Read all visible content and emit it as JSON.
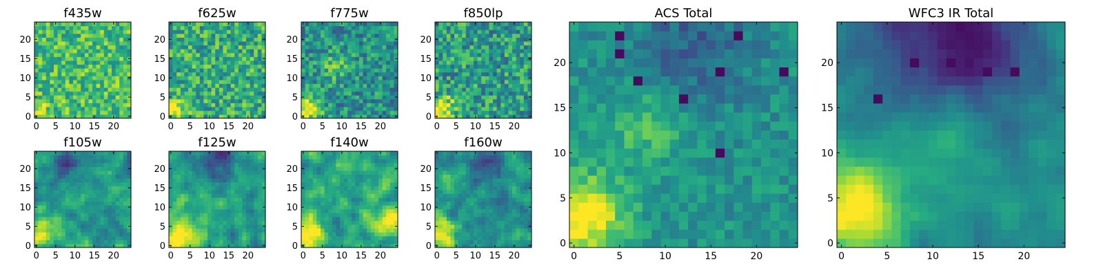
{
  "figure": {
    "background": "#ffffff"
  },
  "colormap": {
    "name": "viridis",
    "stops": [
      "#440154",
      "#472c7a",
      "#3b518b",
      "#2c718e",
      "#21908d",
      "#27ad81",
      "#5cc863",
      "#aadc32",
      "#fde725"
    ]
  },
  "chart_data": [
    {
      "type": "heatmap",
      "title": "f435w",
      "grid": [
        25,
        25
      ],
      "xlim": [
        0,
        25
      ],
      "ylim": [
        0,
        25
      ],
      "xticks": [
        0,
        5,
        10,
        15,
        20
      ],
      "yticks": [
        0,
        5,
        10,
        15,
        20
      ],
      "value_range": [
        0,
        1
      ],
      "style": "noisy",
      "mean": 0.7,
      "noise": 0.22,
      "seed": 11,
      "features": [
        {
          "x": 1,
          "y": 2,
          "amp": 0.2,
          "r": 1.5
        }
      ]
    },
    {
      "type": "heatmap",
      "title": "f625w",
      "grid": [
        25,
        25
      ],
      "xlim": [
        0,
        25
      ],
      "ylim": [
        0,
        25
      ],
      "xticks": [
        0,
        5,
        10,
        15,
        20
      ],
      "yticks": [
        0,
        5,
        10,
        15,
        20
      ],
      "value_range": [
        0,
        1
      ],
      "style": "noisy",
      "mean": 0.62,
      "noise": 0.24,
      "seed": 23,
      "features": [
        {
          "x": 1,
          "y": 2,
          "amp": 0.45,
          "r": 2
        }
      ]
    },
    {
      "type": "heatmap",
      "title": "f775w",
      "grid": [
        25,
        25
      ],
      "xlim": [
        0,
        25
      ],
      "ylim": [
        0,
        25
      ],
      "xticks": [
        0,
        5,
        10,
        15,
        20
      ],
      "yticks": [
        0,
        5,
        10,
        15,
        20
      ],
      "value_range": [
        0,
        1
      ],
      "style": "noisy",
      "mean": 0.5,
      "noise": 0.22,
      "seed": 37,
      "features": [
        {
          "x": 1,
          "y": 2,
          "amp": 0.55,
          "r": 2.5
        },
        {
          "x": 8,
          "y": 13,
          "amp": 0.2,
          "r": 3
        }
      ]
    },
    {
      "type": "heatmap",
      "title": "f850lp",
      "grid": [
        25,
        25
      ],
      "xlim": [
        0,
        25
      ],
      "ylim": [
        0,
        25
      ],
      "xticks": [
        0,
        5,
        10,
        15,
        20
      ],
      "yticks": [
        0,
        5,
        10,
        15,
        20
      ],
      "value_range": [
        0,
        1
      ],
      "style": "noisy",
      "mean": 0.55,
      "noise": 0.25,
      "seed": 41,
      "features": [
        {
          "x": 1,
          "y": 2,
          "amp": 0.5,
          "r": 2.5
        }
      ]
    },
    {
      "type": "heatmap",
      "title": "f105w",
      "grid": [
        25,
        25
      ],
      "xlim": [
        0,
        25
      ],
      "ylim": [
        0,
        25
      ],
      "xticks": [
        0,
        5,
        10,
        15,
        20
      ],
      "yticks": [
        0,
        5,
        10,
        15,
        20
      ],
      "value_range": [
        0,
        1
      ],
      "style": "smooth",
      "mean": 0.55,
      "noise": 0.2,
      "seed": 53,
      "features": [
        {
          "x": 1,
          "y": 4,
          "amp": 0.45,
          "r": 3
        },
        {
          "x": 8,
          "y": 22,
          "amp": -0.3,
          "r": 3
        }
      ]
    },
    {
      "type": "heatmap",
      "title": "f125w",
      "grid": [
        25,
        25
      ],
      "xlim": [
        0,
        25
      ],
      "ylim": [
        0,
        25
      ],
      "xticks": [
        0,
        5,
        10,
        15,
        20
      ],
      "yticks": [
        0,
        5,
        10,
        15,
        20
      ],
      "value_range": [
        0,
        1
      ],
      "style": "smooth",
      "mean": 0.55,
      "noise": 0.2,
      "seed": 67,
      "features": [
        {
          "x": 2,
          "y": 3,
          "amp": 0.5,
          "r": 4
        },
        {
          "x": 12,
          "y": 22,
          "amp": -0.35,
          "r": 3
        }
      ]
    },
    {
      "type": "heatmap",
      "title": "f140w",
      "grid": [
        25,
        25
      ],
      "xlim": [
        0,
        25
      ],
      "ylim": [
        0,
        25
      ],
      "xticks": [
        0,
        5,
        10,
        15,
        20
      ],
      "yticks": [
        0,
        5,
        10,
        15,
        20
      ],
      "value_range": [
        0,
        1
      ],
      "style": "smooth",
      "mean": 0.6,
      "noise": 0.22,
      "seed": 79,
      "features": [
        {
          "x": 1,
          "y": 3,
          "amp": 0.5,
          "r": 3
        },
        {
          "x": 23,
          "y": 6,
          "amp": 0.4,
          "r": 2.5
        }
      ]
    },
    {
      "type": "heatmap",
      "title": "f160w",
      "grid": [
        25,
        25
      ],
      "xlim": [
        0,
        25
      ],
      "ylim": [
        0,
        25
      ],
      "xticks": [
        0,
        5,
        10,
        15,
        20
      ],
      "yticks": [
        0,
        5,
        10,
        15,
        20
      ],
      "value_range": [
        0,
        1
      ],
      "style": "smooth",
      "mean": 0.5,
      "noise": 0.22,
      "seed": 83,
      "features": [
        {
          "x": 1,
          "y": 3,
          "amp": 0.5,
          "r": 3
        },
        {
          "x": 12,
          "y": 22,
          "amp": -0.3,
          "r": 3
        }
      ]
    },
    {
      "type": "heatmap",
      "title": "ACS Total",
      "grid": [
        25,
        25
      ],
      "xlim": [
        0,
        25
      ],
      "ylim": [
        0,
        25
      ],
      "xticks": [
        0,
        5,
        10,
        15,
        20
      ],
      "yticks": [
        0,
        5,
        10,
        15,
        20
      ],
      "value_range": [
        0,
        1
      ],
      "style": "noisy",
      "mean": 0.52,
      "noise": 0.11,
      "seed": 97,
      "features": [
        {
          "x": 1,
          "y": 3,
          "amp": 0.55,
          "r": 3
        },
        {
          "x": 8,
          "y": 13,
          "amp": 0.2,
          "r": 3
        },
        {
          "x": 13,
          "y": 22,
          "amp": -0.2,
          "r": 5
        }
      ],
      "dark_cells": [
        [
          5,
          23
        ],
        [
          18,
          23
        ],
        [
          5,
          21
        ],
        [
          7,
          18
        ],
        [
          16,
          19
        ],
        [
          23,
          19
        ],
        [
          12,
          16
        ],
        [
          16,
          10
        ]
      ]
    },
    {
      "type": "heatmap",
      "title": "WFC3 IR Total",
      "grid": [
        25,
        25
      ],
      "xlim": [
        0,
        25
      ],
      "ylim": [
        0,
        25
      ],
      "xticks": [
        0,
        5,
        10,
        15,
        20
      ],
      "yticks": [
        0,
        5,
        10,
        15,
        20
      ],
      "value_range": [
        0,
        1
      ],
      "style": "smooth",
      "mean": 0.52,
      "noise": 0.1,
      "seed": 101,
      "features": [
        {
          "x": 1,
          "y": 4,
          "amp": 0.55,
          "r": 3.5
        },
        {
          "x": 12,
          "y": 23,
          "amp": -0.45,
          "r": 7
        },
        {
          "x": 10,
          "y": 13,
          "amp": 0.18,
          "r": 4
        }
      ],
      "dark_cells": [
        [
          8,
          20
        ],
        [
          12,
          20
        ],
        [
          4,
          16
        ],
        [
          16,
          19
        ],
        [
          19,
          19
        ]
      ]
    }
  ]
}
